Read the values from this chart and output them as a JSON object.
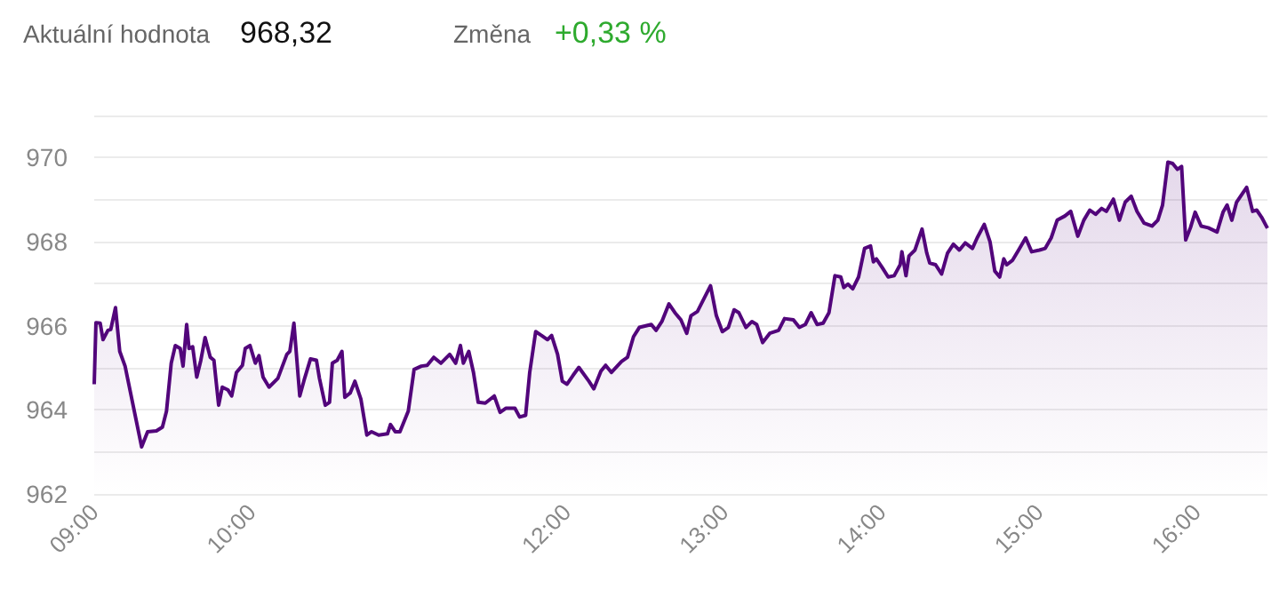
{
  "chart_data": {
    "type": "area",
    "annotations": [
      "Aktuální hodnota",
      "968,32",
      "Změna",
      "+0,33 %"
    ],
    "x": [
      9.0,
      9.011,
      9.038,
      9.056,
      9.087,
      9.105,
      9.135,
      9.162,
      9.196,
      9.301,
      9.339,
      9.395,
      9.433,
      9.459,
      9.489,
      9.515,
      9.546,
      9.564,
      9.587,
      9.602,
      9.625,
      9.651,
      9.677,
      9.704,
      9.737,
      9.76,
      9.79,
      9.813,
      9.85,
      9.873,
      9.903,
      9.941,
      9.959,
      9.989,
      10.023,
      10.046,
      10.072,
      10.11,
      10.166,
      10.223,
      10.242,
      10.268,
      10.305,
      10.336,
      10.373,
      10.411,
      10.43,
      10.467,
      10.494,
      10.512,
      10.543,
      10.573,
      10.591,
      10.625,
      10.655,
      10.693,
      10.731,
      10.761,
      10.806,
      10.862,
      10.881,
      10.911,
      10.941,
      10.994,
      11.031,
      11.077,
      11.114,
      11.156,
      11.201,
      11.257,
      11.295,
      11.325,
      11.344,
      11.378,
      11.408,
      11.438,
      11.483,
      11.54,
      11.577,
      11.615,
      11.671,
      11.701,
      11.739,
      11.765,
      11.803,
      11.84,
      11.878,
      11.904,
      11.942,
      11.972,
      12.002,
      12.04,
      12.077,
      12.141,
      12.172,
      12.217,
      12.247,
      12.284,
      12.348,
      12.386,
      12.424,
      12.461,
      12.537,
      12.567,
      12.604,
      12.649,
      12.687,
      12.725,
      12.762,
      12.789,
      12.83,
      12.875,
      12.913,
      12.95,
      12.988,
      13.026,
      13.063,
      13.093,
      13.138,
      13.176,
      13.206,
      13.244,
      13.289,
      13.345,
      13.383,
      13.439,
      13.477,
      13.515,
      13.552,
      13.59,
      13.628,
      13.665,
      13.703,
      13.74,
      13.759,
      13.786,
      13.816,
      13.853,
      13.891,
      13.929,
      13.947,
      13.966,
      14.004,
      14.041,
      14.079,
      14.117,
      14.128,
      14.154,
      14.173,
      14.211,
      14.256,
      14.286,
      14.305,
      14.342,
      14.38,
      14.418,
      14.455,
      14.493,
      14.53,
      14.576,
      14.606,
      14.651,
      14.688,
      14.718,
      14.749,
      14.775,
      14.794,
      14.831,
      14.869,
      14.914,
      14.952,
      15.001,
      15.038,
      15.076,
      15.114,
      15.163,
      15.2,
      15.245,
      15.283,
      15.321,
      15.358,
      15.396,
      15.426,
      15.471,
      15.509,
      15.546,
      15.584,
      15.621,
      15.666,
      15.716,
      15.753,
      15.783,
      15.817,
      15.847,
      15.877,
      15.904,
      15.93,
      15.96,
      15.99,
      16.028,
      16.073,
      16.129,
      16.167,
      16.193,
      16.223,
      16.253,
      16.291,
      16.317,
      16.355,
      16.381,
      16.412,
      16.449
    ],
    "series": [
      {
        "color": "#52057b",
        "values": [
          964.61,
          966.07,
          966.06,
          965.67,
          965.89,
          965.91,
          966.43,
          965.39,
          965.04,
          963.12,
          963.48,
          963.5,
          963.59,
          963.97,
          965.11,
          965.53,
          965.46,
          965.04,
          966.03,
          965.46,
          965.5,
          964.78,
          965.18,
          965.72,
          965.25,
          965.18,
          964.11,
          964.54,
          964.47,
          964.33,
          964.89,
          965.06,
          965.46,
          965.53,
          965.11,
          965.29,
          964.78,
          964.54,
          964.75,
          965.32,
          965.39,
          966.06,
          964.33,
          964.75,
          965.21,
          965.18,
          964.75,
          964.11,
          964.18,
          965.11,
          965.18,
          965.39,
          964.3,
          964.4,
          964.68,
          964.26,
          963.4,
          963.48,
          963.4,
          963.43,
          963.65,
          963.48,
          963.48,
          963.97,
          964.96,
          965.04,
          965.06,
          965.25,
          965.11,
          965.32,
          965.11,
          965.53,
          965.11,
          965.39,
          964.89,
          964.18,
          964.16,
          964.33,
          963.94,
          964.04,
          964.04,
          963.83,
          963.87,
          964.89,
          965.86,
          965.77,
          965.67,
          965.77,
          965.32,
          964.68,
          964.61,
          964.82,
          965.01,
          964.68,
          964.5,
          964.92,
          965.06,
          964.89,
          965.15,
          965.25,
          965.74,
          965.96,
          966.03,
          965.89,
          966.1,
          966.52,
          966.31,
          966.14,
          965.82,
          966.24,
          966.34,
          966.67,
          966.95,
          966.24,
          965.86,
          965.96,
          966.38,
          966.31,
          965.96,
          966.1,
          966.03,
          965.6,
          965.82,
          965.89,
          966.17,
          966.14,
          965.96,
          966.03,
          966.31,
          966.03,
          966.06,
          966.31,
          967.19,
          967.16,
          966.91,
          966.99,
          966.88,
          967.16,
          967.84,
          967.9,
          967.52,
          967.59,
          967.38,
          967.16,
          967.19,
          967.45,
          967.76,
          967.19,
          967.66,
          967.8,
          968.3,
          967.73,
          967.49,
          967.45,
          967.23,
          967.73,
          967.94,
          967.8,
          967.97,
          967.84,
          968.09,
          968.41,
          967.99,
          967.3,
          967.16,
          967.59,
          967.45,
          967.56,
          967.8,
          968.09,
          967.76,
          967.8,
          967.84,
          968.09,
          968.51,
          968.61,
          968.72,
          968.13,
          968.51,
          968.75,
          968.65,
          968.79,
          968.72,
          969.01,
          968.51,
          968.94,
          969.08,
          968.72,
          968.44,
          968.37,
          968.51,
          968.87,
          969.89,
          969.86,
          969.72,
          969.79,
          968.04,
          968.33,
          968.7,
          968.37,
          968.33,
          968.23,
          968.7,
          968.87,
          968.51,
          968.94,
          969.15,
          969.29,
          968.72,
          968.75,
          968.58,
          968.32
        ]
      }
    ],
    "xlim": [
      9,
      16.449
    ],
    "xticks": [
      {
        "value": 9,
        "label": "09:00"
      },
      {
        "value": 10,
        "label": "10:00"
      },
      {
        "value": 12,
        "label": "12:00"
      },
      {
        "value": 13,
        "label": "13:00"
      },
      {
        "value": 14,
        "label": "14:00"
      },
      {
        "value": 15,
        "label": "15:00"
      },
      {
        "value": 16,
        "label": "16:00"
      }
    ],
    "ylim": [
      962,
      971
    ],
    "yticks": [
      962,
      {
        "value": 963,
        "label": null
      },
      964,
      {
        "value": 965,
        "label": null
      },
      966,
      {
        "value": 967,
        "label": null
      },
      968,
      {
        "value": 969,
        "label": null
      },
      970,
      {
        "value": 971,
        "label": null
      }
    ],
    "grid": "y",
    "marker": "none",
    "line_style": "solid"
  }
}
